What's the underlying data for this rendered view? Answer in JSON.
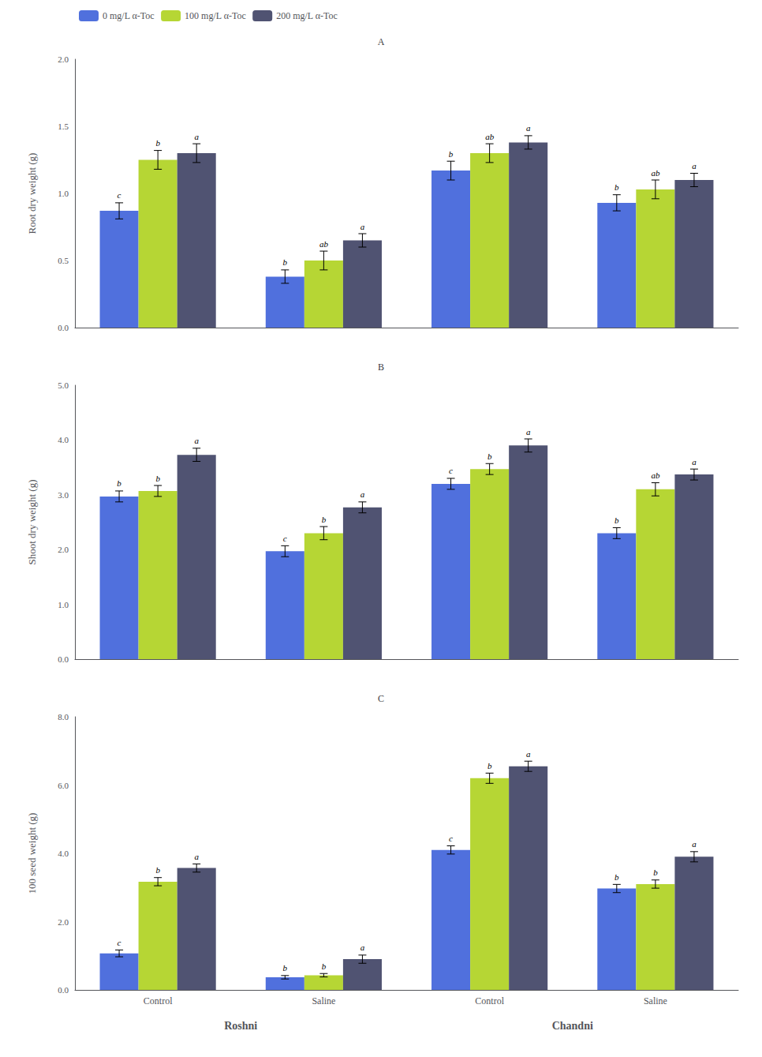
{
  "chart_data": [
    {
      "type": "bar",
      "title": "A",
      "ylabel": "Root dry weight (g)",
      "categories": [
        "Control",
        "Saline",
        "Control",
        "Saline"
      ],
      "series": [
        {
          "name": "0 mg/L α-Toc",
          "values": [
            0.87,
            0.38,
            1.17,
            0.93
          ],
          "errors": [
            0.06,
            0.05,
            0.07,
            0.06
          ],
          "sig_labels": [
            "c",
            "b",
            "b",
            "b"
          ]
        },
        {
          "name": "100 mg/L α-Toc",
          "values": [
            1.25,
            0.5,
            1.3,
            1.03
          ],
          "errors": [
            0.07,
            0.07,
            0.07,
            0.07
          ],
          "sig_labels": [
            "b",
            "ab",
            "ab",
            "ab"
          ]
        },
        {
          "name": "200 mg/L α-Toc",
          "values": [
            1.3,
            0.65,
            1.38,
            1.1
          ],
          "errors": [
            0.07,
            0.05,
            0.05,
            0.05
          ],
          "sig_labels": [
            "a",
            "a",
            "a",
            "a"
          ]
        }
      ],
      "ylim": [
        0.0,
        2.0
      ],
      "yticks": [
        {
          "value": 0,
          "label": "0.0"
        },
        0.5,
        {
          "value": 1,
          "label": "1.0"
        },
        1.5,
        {
          "value": 2,
          "label": "2.0"
        }
      ],
      "grid": false,
      "legend": "upper left",
      "tick_labels": "y"
    },
    {
      "type": "bar",
      "title": "B",
      "ylabel": "Shoot dry weight (g)",
      "categories": [
        "Control",
        "Saline",
        "Control",
        "Saline"
      ],
      "series": [
        {
          "name": "0 mg/L α-Toc",
          "values": [
            2.97,
            1.97,
            3.2,
            2.3
          ],
          "errors": [
            0.1,
            0.1,
            0.1,
            0.1
          ],
          "sig_labels": [
            "b",
            "c",
            "c",
            "b"
          ]
        },
        {
          "name": "100 mg/L α-Toc",
          "values": [
            3.07,
            2.3,
            3.47,
            3.1
          ],
          "errors": [
            0.1,
            0.12,
            0.1,
            0.12
          ],
          "sig_labels": [
            "b",
            "b",
            "b",
            "ab"
          ]
        },
        {
          "name": "200 mg/L α-Toc",
          "values": [
            3.73,
            2.77,
            3.9,
            3.37
          ],
          "errors": [
            0.12,
            0.1,
            0.12,
            0.1
          ],
          "sig_labels": [
            "a",
            "a",
            "a",
            "a"
          ]
        }
      ],
      "ylim": [
        0.0,
        5.0
      ],
      "yticks": [
        {
          "value": 0,
          "label": "0.0"
        },
        {
          "value": 1,
          "label": "1.0"
        },
        {
          "value": 2,
          "label": "2.0"
        },
        {
          "value": 3,
          "label": "3.0"
        },
        {
          "value": 4,
          "label": "4.0"
        },
        {
          "value": 5,
          "label": "5.0"
        }
      ],
      "grid": false,
      "tick_labels": "y"
    },
    {
      "type": "bar",
      "title": "C",
      "ylabel": "100 seed weight (g)",
      "categories": [
        "Control",
        "Saline",
        "Control",
        "Saline"
      ],
      "annotations": [
        "Roshni",
        "Chandni"
      ],
      "series": [
        {
          "name": "0 mg/L α-Toc",
          "values": [
            1.07,
            0.37,
            4.1,
            2.97
          ],
          "errors": [
            0.1,
            0.05,
            0.12,
            0.12
          ],
          "sig_labels": [
            "c",
            "b",
            "c",
            "b"
          ]
        },
        {
          "name": "100 mg/L α-Toc",
          "values": [
            3.17,
            0.43,
            6.2,
            3.1
          ],
          "errors": [
            0.12,
            0.05,
            0.15,
            0.12
          ],
          "sig_labels": [
            "b",
            "b",
            "b",
            "b"
          ]
        },
        {
          "name": "200 mg/L α-Toc",
          "values": [
            3.57,
            0.9,
            6.55,
            3.9
          ],
          "errors": [
            0.12,
            0.12,
            0.15,
            0.15
          ],
          "sig_labels": [
            "a",
            "a",
            "a",
            "a"
          ]
        }
      ],
      "ylim": [
        0.0,
        8.0
      ],
      "yticks": [
        {
          "value": 0,
          "label": "0.0"
        },
        {
          "value": 2,
          "label": "2.0"
        },
        {
          "value": 4,
          "label": "4.0"
        },
        {
          "value": 6,
          "label": "6.0"
        },
        {
          "value": 8,
          "label": "8.0"
        }
      ],
      "grid": false
    }
  ]
}
